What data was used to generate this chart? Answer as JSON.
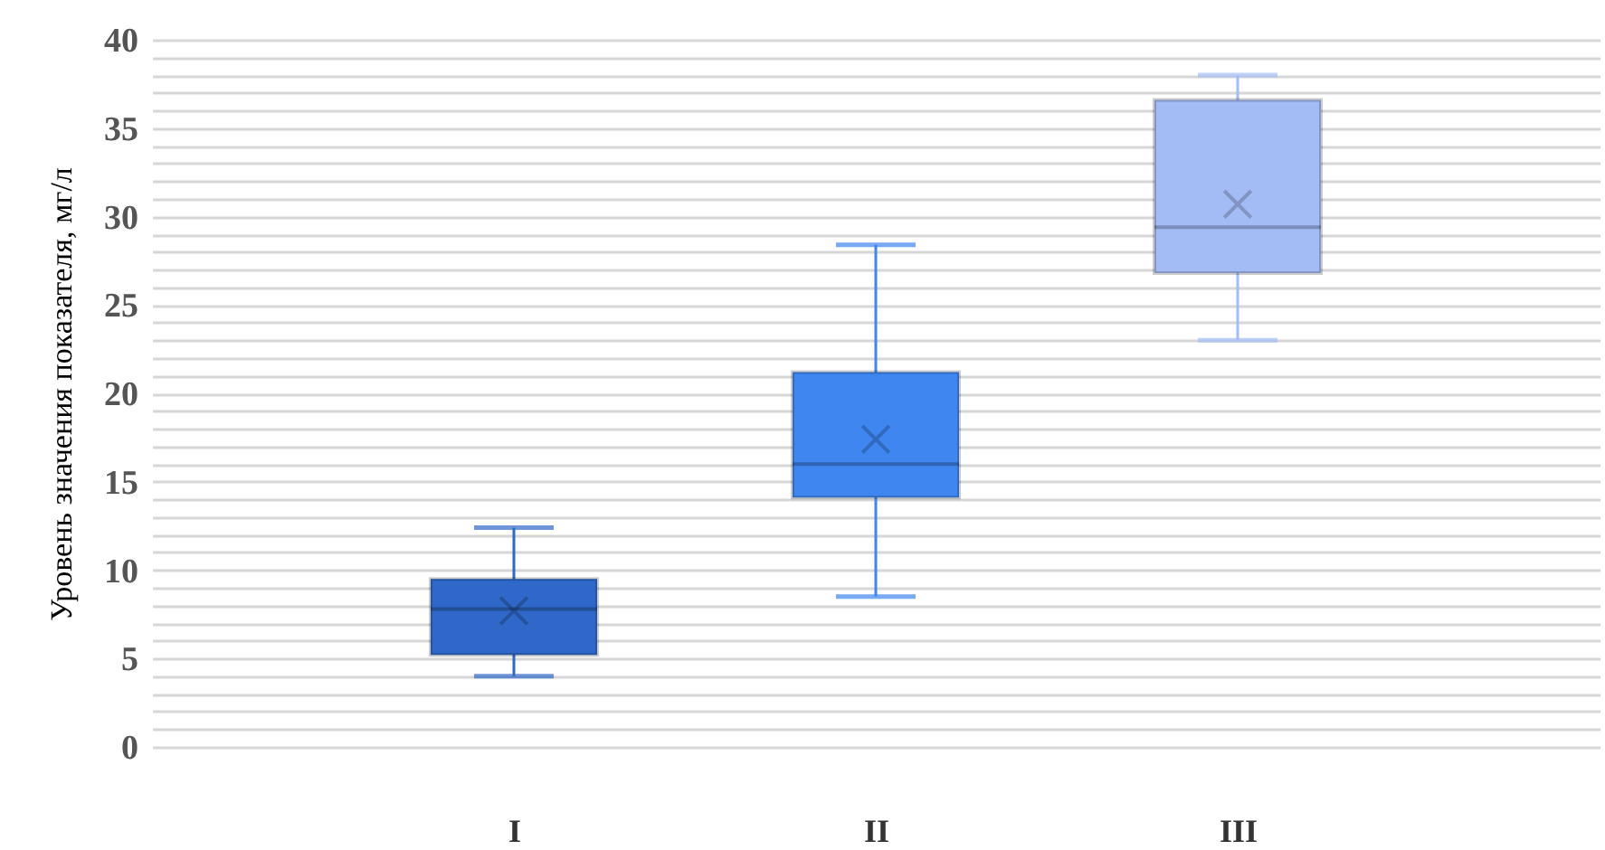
{
  "chart_data": {
    "type": "box",
    "ylabel": "Уровень значения показателя, мг/л",
    "categories": [
      "I",
      "II",
      "III"
    ],
    "boxes": [
      {
        "low": 4,
        "q1": 5.2,
        "median": 7.8,
        "q3": 9.5,
        "high": 12.4,
        "mean": 7.7
      },
      {
        "low": 8.5,
        "q1": 14.1,
        "median": 16,
        "q3": 21.2,
        "high": 28.4,
        "mean": 17.4
      },
      {
        "low": 23,
        "q1": 26.8,
        "median": 29.4,
        "q3": 36.6,
        "high": 38,
        "mean": 30.7
      }
    ],
    "colors": [
      "#2f68c8",
      "#3f86f0",
      "#a4bcf6"
    ],
    "ylim": [
      0,
      40
    ],
    "yticks": [
      0,
      {
        "value": 1,
        "label": null
      },
      {
        "value": 2,
        "label": null
      },
      {
        "value": 3,
        "label": null
      },
      {
        "value": 4,
        "label": null
      },
      5,
      {
        "value": 6,
        "label": null
      },
      {
        "value": 7,
        "label": null
      },
      {
        "value": 8,
        "label": null
      },
      {
        "value": 9,
        "label": null
      },
      10,
      {
        "value": 11,
        "label": null
      },
      {
        "value": 12,
        "label": null
      },
      {
        "value": 13,
        "label": null
      },
      {
        "value": 14,
        "label": null
      },
      15,
      {
        "value": 16,
        "label": null
      },
      {
        "value": 17,
        "label": null
      },
      {
        "value": 18,
        "label": null
      },
      {
        "value": 19,
        "label": null
      },
      20,
      {
        "value": 21,
        "label": null
      },
      {
        "value": 22,
        "label": null
      },
      {
        "value": 23,
        "label": null
      },
      {
        "value": 24,
        "label": null
      },
      25,
      {
        "value": 26,
        "label": null
      },
      {
        "value": 27,
        "label": null
      },
      {
        "value": 28,
        "label": null
      },
      {
        "value": 29,
        "label": null
      },
      30,
      {
        "value": 31,
        "label": null
      },
      {
        "value": 32,
        "label": null
      },
      {
        "value": 33,
        "label": null
      },
      {
        "value": 34,
        "label": null
      },
      35,
      {
        "value": 36,
        "label": null
      },
      {
        "value": 37,
        "label": null
      },
      {
        "value": 38,
        "label": null
      },
      {
        "value": 39,
        "label": null
      },
      40
    ],
    "grid": "y",
    "marker": "cross"
  }
}
